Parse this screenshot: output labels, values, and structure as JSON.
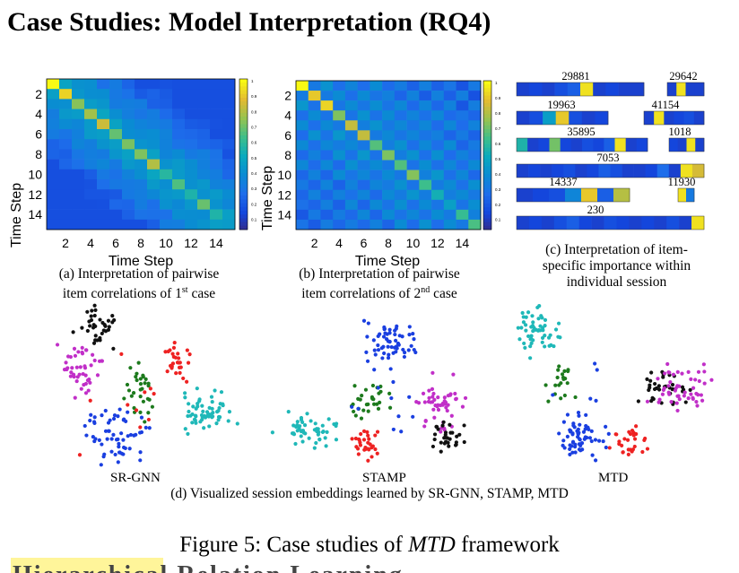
{
  "title": "Case Studies: Model Interpretation (RQ4)",
  "heatmap1": {
    "ylabel": "Time Step",
    "xlabel": "Time Step",
    "xticks": [
      "2",
      "4",
      "6",
      "8",
      "10",
      "12",
      "14"
    ],
    "yticks": [
      "2",
      "4",
      "6",
      "8",
      "10",
      "12",
      "14"
    ],
    "colorbar_ticks": [
      "1",
      "0.9",
      "0.8",
      "0.7",
      "0.6",
      "0.5",
      "0.4",
      "0.3",
      "0.2",
      "0.1"
    ],
    "caption_line1": "(a) Interpretation of pairwise",
    "caption_line2_pre": "item correlations of 1",
    "caption_sup": "st",
    "caption_line2_post": " case"
  },
  "heatmap2": {
    "ylabel": "Time Step",
    "xlabel": "Time Step",
    "xticks": [
      "2",
      "4",
      "6",
      "8",
      "10",
      "12",
      "14"
    ],
    "yticks": [
      "2",
      "4",
      "6",
      "8",
      "10",
      "12",
      "14"
    ],
    "colorbar_ticks": [
      "1",
      "0.9",
      "0.8",
      "0.7",
      "0.6",
      "0.5",
      "0.4",
      "0.3",
      "0.2",
      "0.1"
    ],
    "caption_line1": "(b) Interpretation of pairwise",
    "caption_line2_pre": "item correlations of 2",
    "caption_sup": "nd",
    "caption_line2_post": " case"
  },
  "sessions": {
    "bars": [
      {
        "id_left": "29881",
        "id_right": "29642"
      },
      {
        "id_left": "19963",
        "id_right": "41154"
      },
      {
        "id_left": "35895",
        "id_right": "1018"
      },
      {
        "id_left": "7053",
        "id_right": ""
      },
      {
        "id_left": "14337",
        "id_right": "11930"
      },
      {
        "id_left": "230",
        "id_right": ""
      }
    ],
    "caption_line1": "(c) Interpretation of item-",
    "caption_line2": "specific importance within",
    "caption_line3": "individual session"
  },
  "scatter": {
    "labels": [
      "SR-GNN",
      "STAMP",
      "MTD"
    ],
    "caption": "(d) Visualized session embeddings learned by SR-GNN, STAMP, MTD",
    "colors": {
      "magenta": "#c12fc8",
      "black": "#111111",
      "green": "#1d7a1d",
      "red": "#ee2222",
      "cyan": "#1fb8b8",
      "blue": "#1a3fe0"
    }
  },
  "figure_caption_pre": "Figure 5: Case studies of ",
  "figure_caption_em": "MTD",
  "figure_caption_post": " framework",
  "next_heading": "Hierarchical Relation Learning"
}
